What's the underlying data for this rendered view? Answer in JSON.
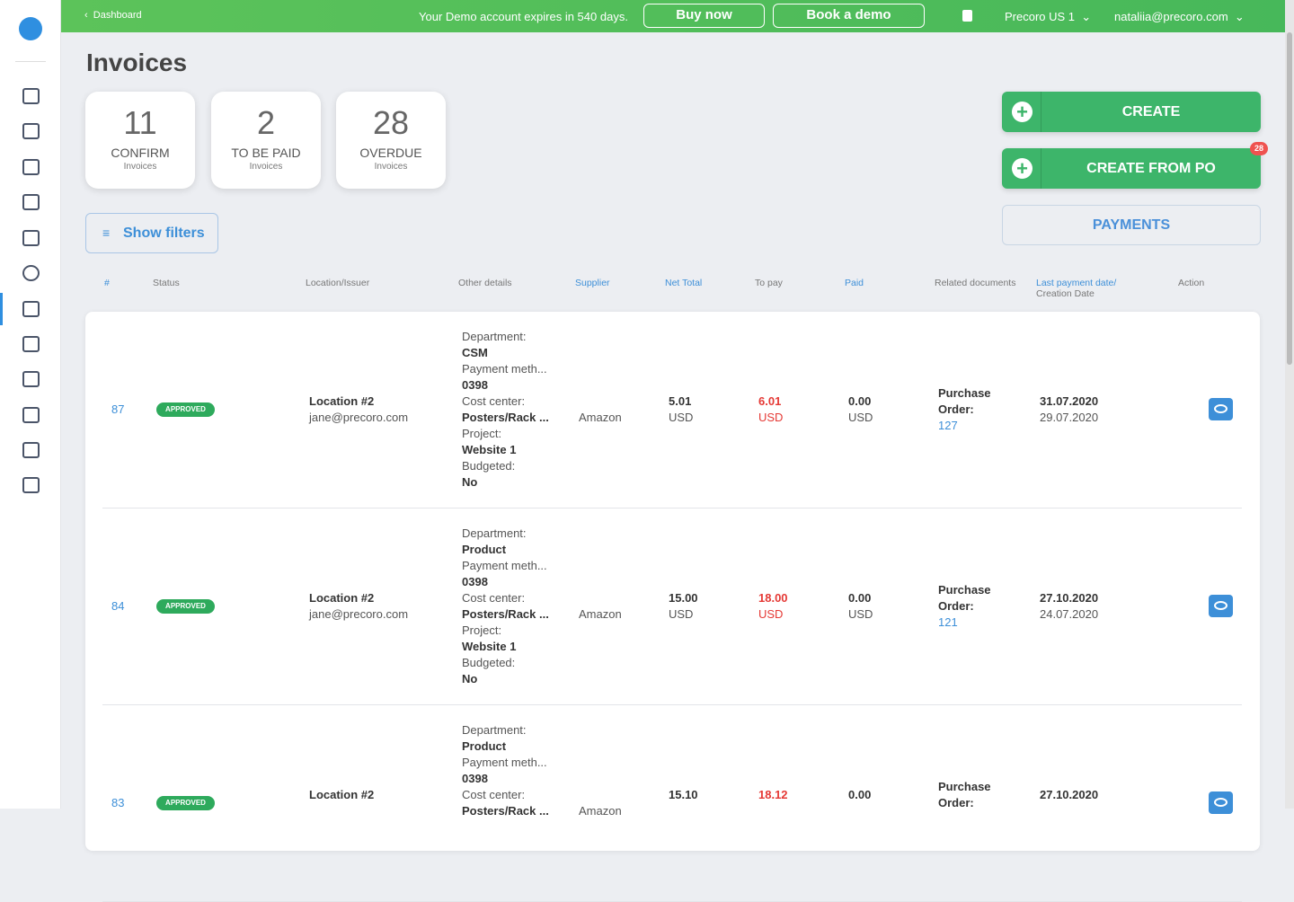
{
  "topbar": {
    "back": "Dashboard",
    "notice": "Your Demo account expires in 540 days.",
    "buy": "Buy now",
    "demo": "Book a demo",
    "company": "Precoro US 1",
    "user": "nataliia@precoro.com"
  },
  "page": {
    "title": "Invoices"
  },
  "stats": [
    {
      "count": "11",
      "label": "CONFIRM",
      "sub": "Invoices"
    },
    {
      "count": "2",
      "label": "TO BE PAID",
      "sub": "Invoices"
    },
    {
      "count": "28",
      "label": "OVERDUE",
      "sub": "Invoices"
    }
  ],
  "actions": {
    "create": "CREATE",
    "create_from_po": "CREATE FROM PO",
    "badge": "28",
    "payments": "PAYMENTS",
    "filters": "Show filters"
  },
  "table": {
    "headers": [
      "#",
      "Status",
      "Location/Issuer",
      "Other details",
      "Supplier",
      "Net Total",
      "To pay",
      "Paid",
      "Related documents",
      "Last payment date/",
      "Action"
    ],
    "header_sub": "Creation Date",
    "rows": [
      {
        "id": "87",
        "status": "APPROVED",
        "location": "Location #2",
        "issuer": "jane@precoro.com",
        "details": [
          {
            "label": "Department:",
            "value": "CSM"
          },
          {
            "label": "Payment meth...",
            "value": "0398"
          },
          {
            "label": "Cost center:",
            "value": "Posters/Rack ..."
          },
          {
            "label": "Project:",
            "value": "Website 1"
          },
          {
            "label": "Budgeted:",
            "value": "No"
          }
        ],
        "supplier": "Amazon",
        "net": "5.01",
        "net_cur": "USD",
        "topay": "6.01",
        "topay_cur": "USD",
        "paid": "0.00",
        "paid_cur": "USD",
        "rel_label": "Purchase Order:",
        "rel_num": "127",
        "last_date": "31.07.2020",
        "created": "29.07.2020"
      },
      {
        "id": "84",
        "status": "APPROVED",
        "location": "Location #2",
        "issuer": "jane@precoro.com",
        "details": [
          {
            "label": "Department:",
            "value": "Product"
          },
          {
            "label": "Payment meth...",
            "value": "0398"
          },
          {
            "label": "Cost center:",
            "value": "Posters/Rack ..."
          },
          {
            "label": "Project:",
            "value": "Website 1"
          },
          {
            "label": "Budgeted:",
            "value": "No"
          }
        ],
        "supplier": "Amazon",
        "net": "15.00",
        "net_cur": "USD",
        "topay": "18.00",
        "topay_cur": "USD",
        "paid": "0.00",
        "paid_cur": "USD",
        "rel_label": "Purchase Order:",
        "rel_num": "121",
        "last_date": "27.10.2020",
        "created": "24.07.2020"
      },
      {
        "id": "83",
        "status": "APPROVED",
        "location": "Location #2",
        "details": [
          {
            "label": "Department:",
            "value": "Product"
          },
          {
            "label": "Payment meth...",
            "value": "0398"
          },
          {
            "label": "Cost center:",
            "value": "Posters/Rack ..."
          }
        ],
        "supplier": "Amazon",
        "net": "15.10",
        "topay": "18.12",
        "paid": "0.00",
        "rel_label": "Purchase Order:",
        "last_date": "27.10.2020"
      }
    ]
  }
}
